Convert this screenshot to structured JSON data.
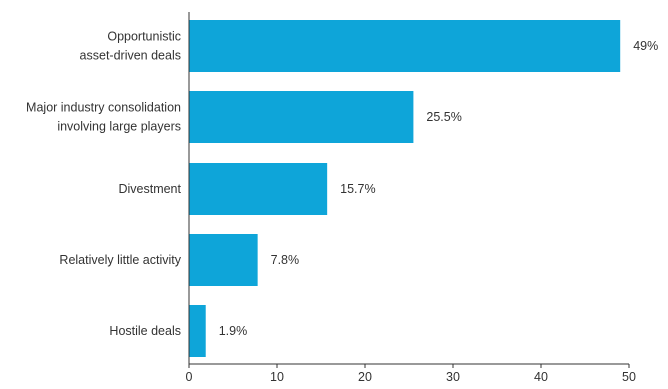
{
  "chart_data": {
    "type": "bar",
    "orientation": "horizontal",
    "title": "",
    "xlabel": "",
    "ylabel": "",
    "categories": [
      [
        "Opportunistic",
        "asset-driven deals"
      ],
      [
        "Major industry consolidation",
        "involving large players"
      ],
      [
        "Divestment"
      ],
      [
        "Relatively little activity"
      ],
      [
        "Hostile deals"
      ]
    ],
    "values": [
      49,
      25.5,
      15.7,
      7.8,
      1.9
    ],
    "value_labels": [
      "49%",
      "25.5%",
      "15.7%",
      "7.8%",
      "1.9%"
    ],
    "xlim": [
      0,
      50
    ],
    "x_ticks": [
      0,
      10,
      20,
      30,
      40,
      50
    ],
    "x_tick_labels": [
      "0",
      "10",
      "20",
      "30",
      "40",
      "50"
    ],
    "grid": false,
    "legend": "none",
    "colors": {
      "bar": "#0ea5d9",
      "text": "#333333",
      "axis": "#333333"
    }
  }
}
